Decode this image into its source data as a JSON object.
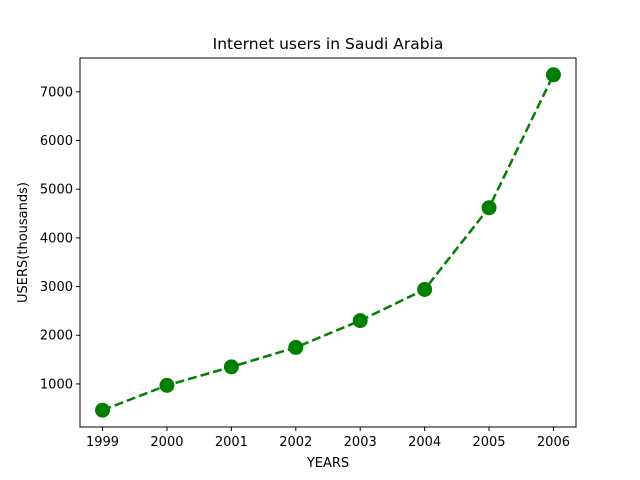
{
  "chart_data": {
    "type": "line",
    "title": "Internet users in Saudi Arabia",
    "xlabel": "YEARS",
    "ylabel": "USERS(thousands)",
    "x": [
      1999,
      2000,
      2001,
      2002,
      2003,
      2004,
      2005,
      2006
    ],
    "x_tick_labels": [
      "1999",
      "2000",
      "2001",
      "2002",
      "2003",
      "2004",
      "2005",
      "2006"
    ],
    "series": [
      {
        "values": [
          460,
          970,
          1350,
          1750,
          2300,
          2940,
          4620,
          7350
        ],
        "color": "#008000",
        "line_style": "dashed",
        "marker": "circle"
      }
    ],
    "y_ticks": [
      1000,
      2000,
      3000,
      4000,
      5000,
      6000,
      7000
    ],
    "y_tick_labels": [
      "1000",
      "2000",
      "3000",
      "4000",
      "5000",
      "6000",
      "7000"
    ],
    "xlim": [
      1998.65,
      2006.35
    ],
    "ylim": [
      115,
      7695
    ],
    "grid": false,
    "legend": "none"
  }
}
